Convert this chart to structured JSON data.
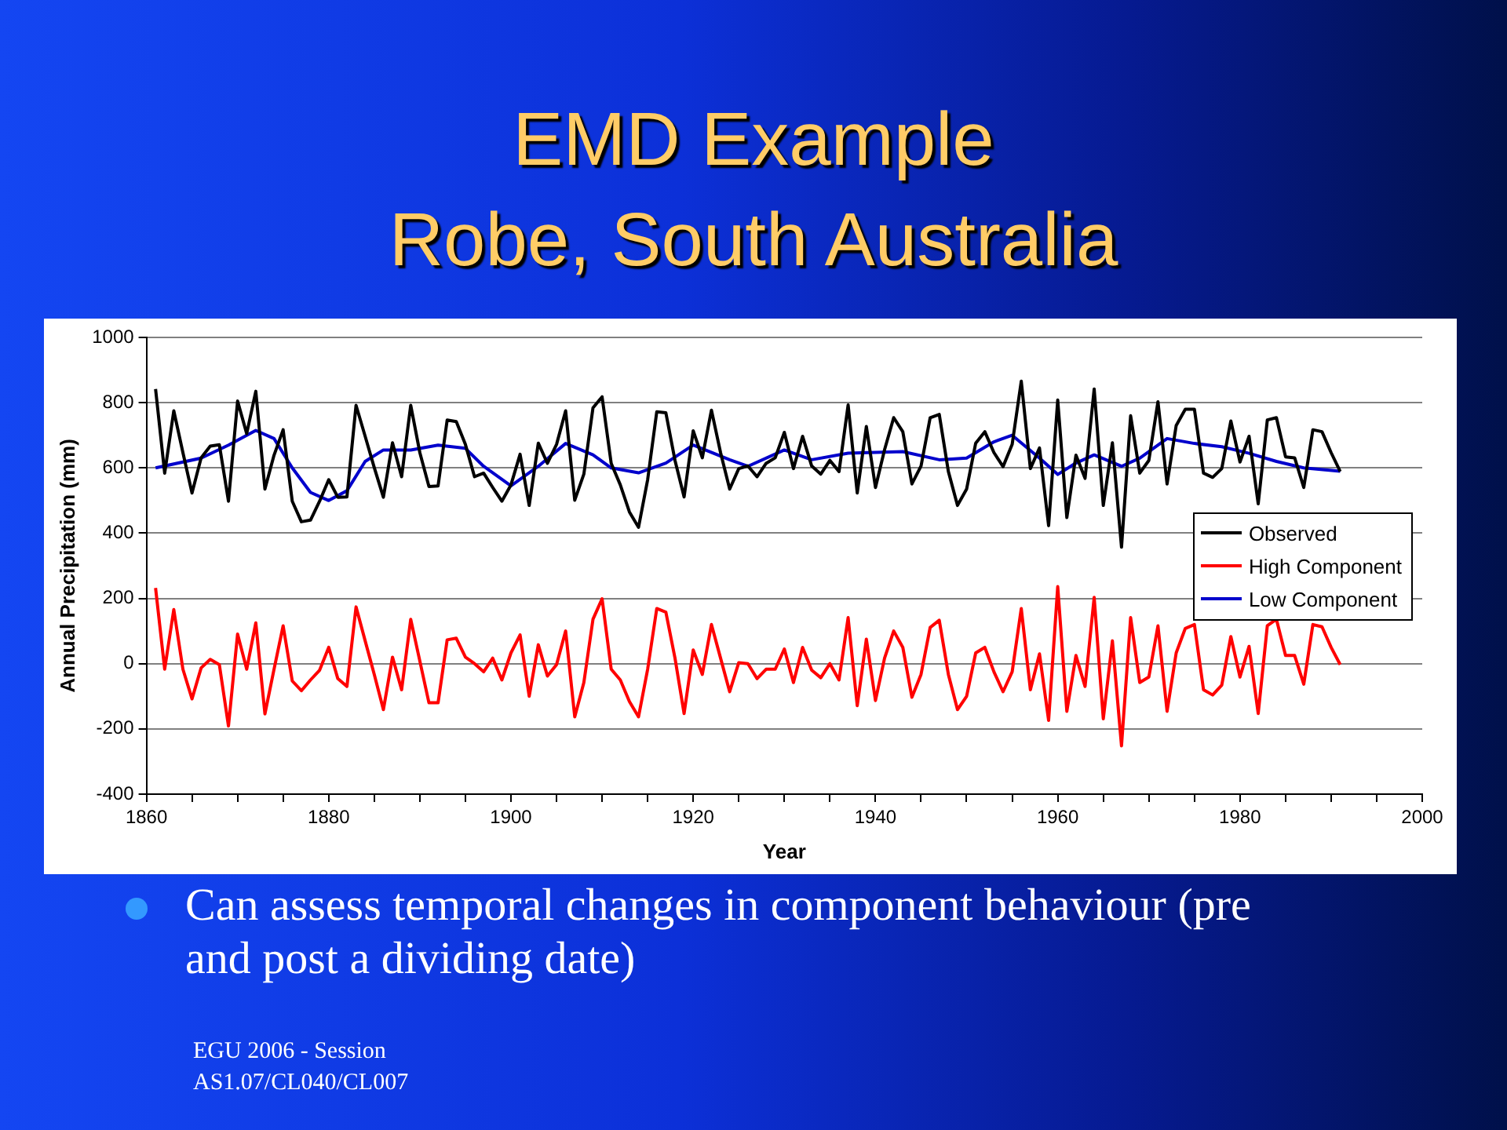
{
  "chart_data": {
    "type": "line",
    "title": "EMD Example",
    "subtitle": "Robe, South Australia",
    "xlabel": "Year",
    "ylabel": "Annual Precipitation (mm)",
    "annotations": [
      "Can assess temporal changes in component behaviour (pre and post a dividing date)",
      "EGU 2006 - Session AS1.07/CL040/CL007"
    ],
    "x": [
      1861,
      1862,
      1863,
      1864,
      1865,
      1866,
      1867,
      1868,
      1869,
      1870,
      1871,
      1872,
      1873,
      1874,
      1875,
      1876,
      1877,
      1878,
      1879,
      1880,
      1881,
      1882,
      1883,
      1884,
      1885,
      1886,
      1887,
      1888,
      1889,
      1890,
      1891,
      1892,
      1893,
      1894,
      1895,
      1896,
      1897,
      1898,
      1899,
      1900,
      1901,
      1902,
      1903,
      1904,
      1905,
      1906,
      1907,
      1908,
      1909,
      1910,
      1911,
      1912,
      1913,
      1914,
      1915,
      1916,
      1917,
      1918,
      1919,
      1920,
      1921,
      1922,
      1923,
      1924,
      1925,
      1926,
      1927,
      1928,
      1929,
      1930,
      1931,
      1932,
      1933,
      1934,
      1935,
      1936,
      1937,
      1938,
      1939,
      1940,
      1941,
      1942,
      1943,
      1944,
      1945,
      1946,
      1947,
      1948,
      1949,
      1950,
      1951,
      1952,
      1953,
      1954,
      1955,
      1956,
      1957,
      1958,
      1959,
      1960,
      1961,
      1962,
      1963,
      1964,
      1965,
      1966,
      1967,
      1968,
      1969,
      1970,
      1971,
      1972,
      1973,
      1974,
      1975,
      1976,
      1977,
      1978,
      1979,
      1980,
      1981,
      1982,
      1983,
      1984,
      1985,
      1986,
      1987,
      1988,
      1989,
      1990,
      1991
    ],
    "series": [
      {
        "name": "Observed",
        "color": "#000000",
        "values": [
          842,
          584,
          775,
          647,
          523,
          631,
          667,
          671,
          498,
          805,
          705,
          835,
          535,
          639,
          717,
          498,
          435,
          440,
          498,
          564,
          510,
          511,
          792,
          697,
          601,
          510,
          677,
          573,
          792,
          647,
          543,
          545,
          747,
          742,
          672,
          573,
          584,
          540,
          498,
          548,
          642,
          485,
          676,
          614,
          672,
          775,
          501,
          581,
          784,
          818,
          614,
          548,
          465,
          418,
          564,
          772,
          769,
          623,
          511,
          714,
          631,
          777,
          647,
          535,
          598,
          606,
          573,
          614,
          631,
          709,
          598,
          697,
          606,
          581,
          623,
          589,
          793,
          523,
          727,
          540,
          656,
          754,
          711,
          551,
          606,
          754,
          764,
          589,
          485,
          535,
          676,
          711,
          647,
          604,
          672,
          866,
          598,
          661,
          423,
          808,
          448,
          639,
          568,
          842,
          485,
          677,
          357,
          760,
          584,
          623,
          803,
          551,
          730,
          780,
          780,
          584,
          571,
          598,
          744,
          618,
          697,
          490,
          747,
          754,
          634,
          631,
          540,
          717,
          711,
          647,
          589
        ]
      },
      {
        "name": "High Component",
        "color": "#ff0000",
        "values": [
          232,
          -17,
          166,
          -17,
          -108,
          -13,
          13,
          -3,
          -191,
          91,
          -17,
          125,
          -154,
          -17,
          116,
          -53,
          -83,
          -50,
          -20,
          50,
          -46,
          -70,
          174,
          70,
          -33,
          -141,
          20,
          -80,
          136,
          8,
          -120,
          -120,
          73,
          78,
          20,
          0,
          -25,
          17,
          -50,
          33,
          88,
          -100,
          58,
          -38,
          -3,
          100,
          -163,
          -58,
          136,
          199,
          -17,
          -50,
          -116,
          -163,
          -17,
          169,
          158,
          17,
          -153,
          42,
          -33,
          120,
          17,
          -86,
          3,
          0,
          -46,
          -17,
          -17,
          45,
          -58,
          50,
          -20,
          -43,
          0,
          -50,
          141,
          -129,
          75,
          -113,
          17,
          100,
          50,
          -103,
          -33,
          111,
          133,
          -33,
          -141,
          -100,
          33,
          50,
          -25,
          -86,
          -25,
          169,
          -80,
          30,
          -174,
          236,
          -146,
          25,
          -70,
          203,
          -169,
          70,
          -252,
          141,
          -58,
          -41,
          116,
          -146,
          33,
          108,
          120,
          -80,
          -96,
          -66,
          83,
          -41,
          53,
          -153,
          116,
          136,
          25,
          25,
          -63,
          120,
          113,
          50,
          -3
        ]
      },
      {
        "name": "Low Component",
        "color": "#0000cc",
        "x": [
          1861,
          1866,
          1869,
          1872,
          1874,
          1876,
          1878,
          1880,
          1882,
          1884,
          1886,
          1889,
          1892,
          1895,
          1897,
          1900,
          1903,
          1906,
          1909,
          1911,
          1914,
          1917,
          1920,
          1924,
          1926,
          1930,
          1933,
          1937,
          1943,
          1947,
          1950,
          1953,
          1955,
          1958,
          1960,
          1962,
          1964,
          1967,
          1969,
          1972,
          1975,
          1978,
          1981,
          1984,
          1987,
          1991
        ],
        "values": [
          600,
          630,
          670,
          715,
          690,
          600,
          525,
          500,
          530,
          620,
          655,
          655,
          670,
          660,
          605,
          545,
          605,
          675,
          640,
          600,
          585,
          615,
          670,
          625,
          605,
          655,
          625,
          645,
          650,
          625,
          630,
          680,
          700,
          630,
          580,
          615,
          640,
          605,
          630,
          690,
          675,
          665,
          645,
          620,
          600,
          590
        ]
      }
    ],
    "xlim": [
      1860,
      2000
    ],
    "xticks": [
      1860,
      {
        "value": 1865,
        "label": null
      },
      {
        "value": 1870,
        "label": null
      },
      {
        "value": 1875,
        "label": null
      },
      1880,
      {
        "value": 1885,
        "label": null
      },
      {
        "value": 1890,
        "label": null
      },
      {
        "value": 1895,
        "label": null
      },
      1900,
      {
        "value": 1905,
        "label": null
      },
      {
        "value": 1910,
        "label": null
      },
      {
        "value": 1915,
        "label": null
      },
      1920,
      {
        "value": 1925,
        "label": null
      },
      {
        "value": 1930,
        "label": null
      },
      {
        "value": 1935,
        "label": null
      },
      1940,
      {
        "value": 1945,
        "label": null
      },
      {
        "value": 1950,
        "label": null
      },
      {
        "value": 1955,
        "label": null
      },
      1960,
      {
        "value": 1965,
        "label": null
      },
      {
        "value": 1970,
        "label": null
      },
      {
        "value": 1975,
        "label": null
      },
      1980,
      {
        "value": 1985,
        "label": null
      },
      {
        "value": 1990,
        "label": null
      },
      {
        "value": 1995,
        "label": null
      },
      2000
    ],
    "ylim": [
      -400,
      1000
    ],
    "yticks": [
      -400,
      -200,
      0,
      200,
      400,
      600,
      800,
      1000
    ],
    "grid": "y",
    "legend": "right",
    "marker": "none",
    "line_style": "solid"
  }
}
